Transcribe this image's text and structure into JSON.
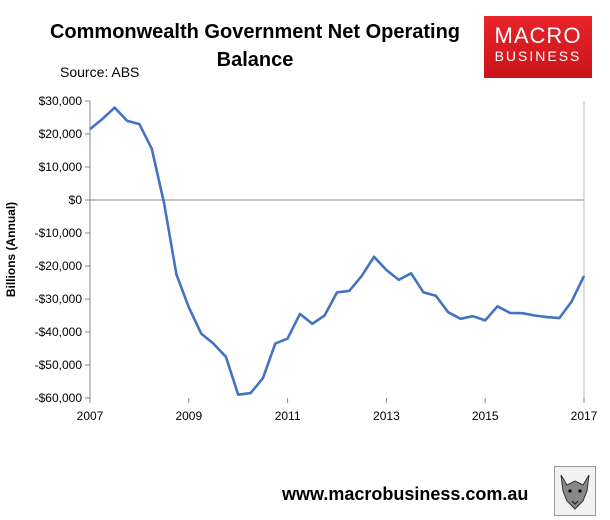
{
  "header": {
    "title_line1": "Commonwealth Government Net Operating",
    "title_line2": "Balance",
    "source": "Source: ABS"
  },
  "logo": {
    "line1": "MACRO",
    "line2": "BUSINESS",
    "bg_color": "#e8242a"
  },
  "footer": {
    "url": "www.macrobusiness.com.au",
    "icon": "wolf-icon"
  },
  "chart_data": {
    "type": "line",
    "title": "Commonwealth Government Net Operating Balance",
    "ylabel": "Billions (Annual)",
    "xlabel": "",
    "xlim": [
      2007,
      2017
    ],
    "ylim": [
      -60000,
      30000
    ],
    "yticks": [
      30000,
      20000,
      10000,
      0,
      -10000,
      -20000,
      -30000,
      -40000,
      -50000,
      -60000
    ],
    "ytick_labels": [
      "$30,000",
      "$20,000",
      "$10,000",
      "$0",
      "-$10,000",
      "-$20,000",
      "-$30,000",
      "-$40,000",
      "-$50,000",
      "-$60,000"
    ],
    "xticks": [
      2007,
      2009,
      2011,
      2013,
      2015,
      2017
    ],
    "xtick_labels": [
      "2007",
      "2009",
      "2011",
      "2013",
      "2015",
      "2017"
    ],
    "grid": false,
    "line_color": "#4472c4",
    "series": [
      {
        "x": [
          2007.0,
          2007.25,
          2007.5,
          2007.75,
          2008.0,
          2008.25,
          2008.5,
          2008.75,
          2009.0,
          2009.25,
          2009.5,
          2009.75,
          2010.0,
          2010.25,
          2010.5,
          2010.75,
          2011.0,
          2011.25,
          2011.5,
          2011.75,
          2012.0,
          2012.25,
          2012.5,
          2012.75,
          2013.0,
          2013.25,
          2013.5,
          2013.75,
          2014.0,
          2014.25,
          2014.5,
          2014.75,
          2015.0,
          2015.25,
          2015.5,
          2015.75,
          2016.0,
          2016.25,
          2016.5,
          2016.75,
          2017.0
        ],
        "values": [
          21500,
          24500,
          28000,
          24000,
          23000,
          15500,
          -1000,
          -22500,
          -32500,
          -40500,
          -43500,
          -47500,
          -59000,
          -58500,
          -54000,
          -43500,
          -42000,
          -34500,
          -37500,
          -35000,
          -28000,
          -27500,
          -23000,
          -17200,
          -21200,
          -24200,
          -22200,
          -28000,
          -29000,
          -34000,
          -36000,
          -35200,
          -36500,
          -32200,
          -34200,
          -34300,
          -35000,
          -35500,
          -35800,
          -30800,
          -23000
        ]
      }
    ]
  }
}
